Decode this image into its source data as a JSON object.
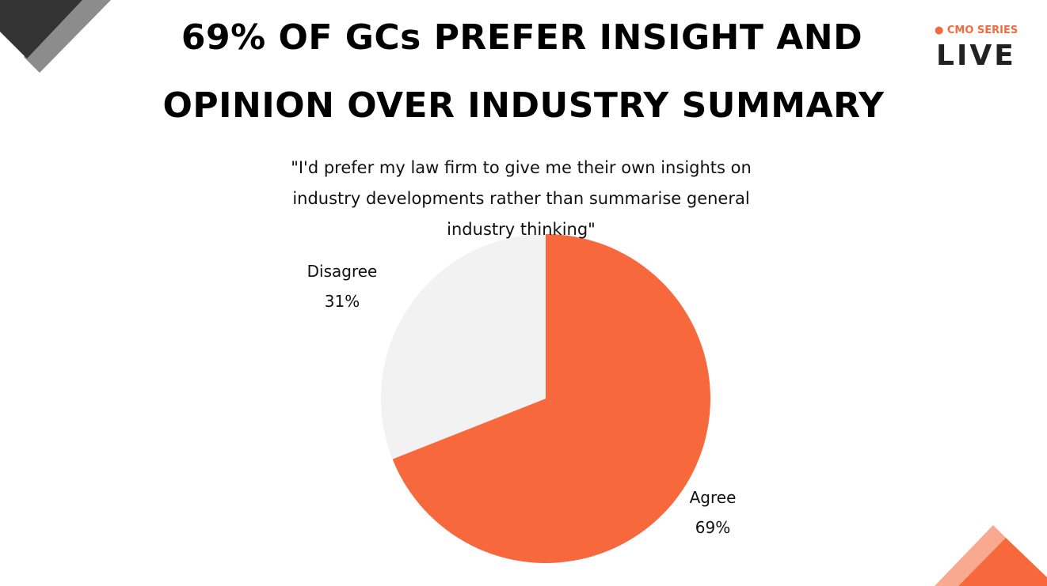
{
  "slide": {
    "title_line1": "69% OF GCs PREFER INSIGHT AND",
    "title_line2": "OPINION OVER INDUSTRY SUMMARY",
    "quote_line1": "\"I'd prefer my law firm to give me their own insights on",
    "quote_line2": "industry developments rather than summarise general",
    "quote_line3": "industry thinking\""
  },
  "logo": {
    "series": "CMO SERIES",
    "word": "LIVE",
    "accent_color": "#f26a3d",
    "icon": "octopus-icon"
  },
  "colors": {
    "agree": "#f8683d",
    "disagree": "#f2f2f2",
    "corner_dark": "#333333",
    "corner_gray": "#8c8c8c",
    "corner_orange": "#f8683d",
    "corner_light_orange": "#f9a98f"
  },
  "chart_data": {
    "type": "pie",
    "slices": [
      {
        "label": "Agree",
        "value": 69,
        "value_label": "69%"
      },
      {
        "label": "Disagree",
        "value": 31,
        "value_label": "31%"
      }
    ]
  }
}
